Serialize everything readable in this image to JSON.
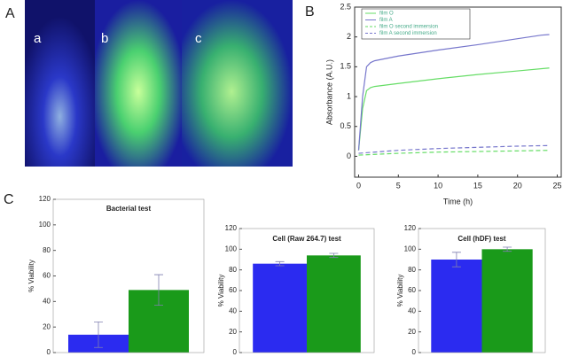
{
  "panel_labels": [
    "A",
    "B",
    "C"
  ],
  "photo_labels": [
    "a",
    "b",
    "c"
  ],
  "chart_data": [
    {
      "type": "line",
      "xlabel": "Time (h)",
      "ylabel": "Absorbance (A.U.)",
      "xlim": [
        -0.5,
        25.5
      ],
      "xticks": [
        0,
        5,
        10,
        15,
        20,
        25
      ],
      "ylim": [
        -0.35,
        2.5
      ],
      "yticks": [
        0,
        0.5,
        1,
        1.5,
        2,
        2.5
      ],
      "legend": "upper left",
      "series": [
        {
          "name": "film O",
          "color": "#66dd66",
          "dash": false,
          "x": [
            0,
            0.5,
            1,
            1.5,
            2,
            5,
            10,
            15,
            20,
            24
          ],
          "values": [
            0.1,
            0.8,
            1.1,
            1.15,
            1.17,
            1.22,
            1.3,
            1.37,
            1.43,
            1.48
          ]
        },
        {
          "name": "film A",
          "color": "#7777cc",
          "dash": false,
          "x": [
            0,
            0.5,
            1,
            1.5,
            2,
            5,
            10,
            15,
            20,
            23,
            24
          ],
          "values": [
            0.1,
            1.0,
            1.5,
            1.57,
            1.6,
            1.68,
            1.78,
            1.87,
            1.97,
            2.03,
            2.04
          ]
        },
        {
          "name": "film O second immersion",
          "color": "#66dd66",
          "dash": true,
          "x": [
            0,
            5,
            10,
            15,
            20,
            24
          ],
          "values": [
            0.02,
            0.05,
            0.07,
            0.08,
            0.09,
            0.1
          ]
        },
        {
          "name": "film A second immersion",
          "color": "#7777cc",
          "dash": true,
          "x": [
            0,
            5,
            10,
            15,
            20,
            24
          ],
          "values": [
            0.05,
            0.1,
            0.13,
            0.15,
            0.17,
            0.18
          ]
        }
      ]
    },
    {
      "type": "bar",
      "title": "Bacterial test",
      "ylabel": "% Viability",
      "categories": [
        null,
        null
      ],
      "values": [
        14,
        49
      ],
      "errors": [
        10,
        12
      ],
      "colors": [
        "#2b2bf0",
        "#1a9a1a"
      ],
      "ylim": [
        0,
        120
      ],
      "yticks": [
        0,
        20,
        40,
        60,
        80,
        100,
        120
      ]
    },
    {
      "type": "bar",
      "title": "Cell (Raw 264.7) test",
      "ylabel": "% Viability",
      "categories": [
        null,
        null
      ],
      "values": [
        86,
        94
      ],
      "errors": [
        2,
        2
      ],
      "colors": [
        "#2b2bf0",
        "#1a9a1a"
      ],
      "ylim": [
        0,
        120
      ],
      "yticks": [
        0,
        20,
        40,
        60,
        80,
        100,
        120
      ]
    },
    {
      "type": "bar",
      "title": "Cell (hDF) test",
      "ylabel": "% Viability",
      "categories": [
        null,
        null
      ],
      "values": [
        90,
        100
      ],
      "errors": [
        7,
        2
      ],
      "colors": [
        "#2b2bf0",
        "#1a9a1a"
      ],
      "ylim": [
        0,
        120
      ],
      "yticks": [
        0,
        20,
        40,
        60,
        80,
        100,
        120
      ]
    }
  ]
}
